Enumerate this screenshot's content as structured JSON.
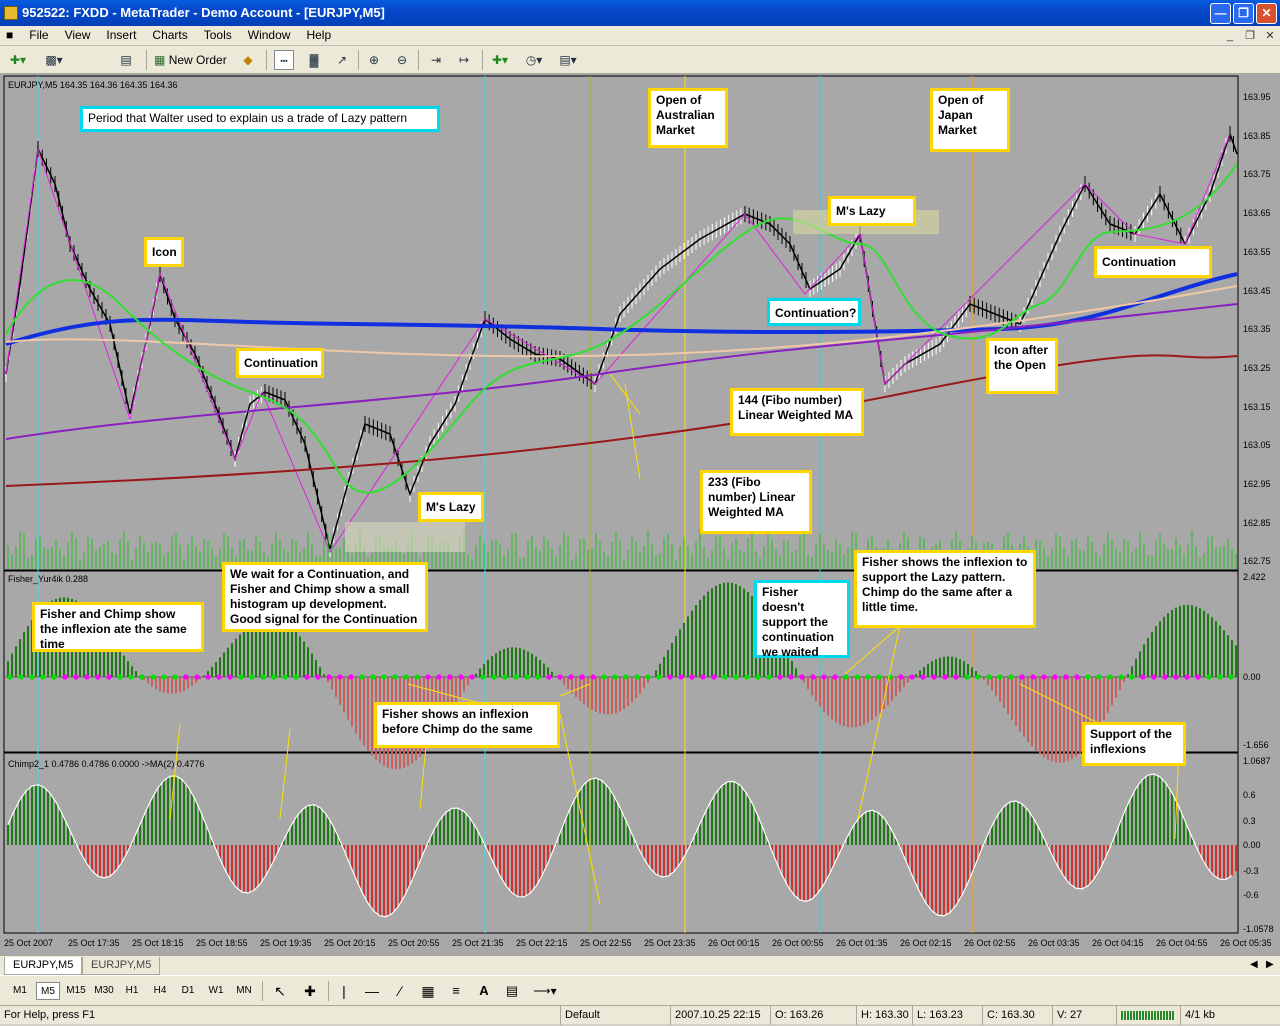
{
  "window": {
    "title": "952522: FXDD - MetaTrader - Demo Account - [EURJPY,M5]"
  },
  "menu": {
    "items": [
      "File",
      "View",
      "Insert",
      "Charts",
      "Tools",
      "Window",
      "Help"
    ]
  },
  "toolbar": {
    "new_order_label": "New Order"
  },
  "chart": {
    "symbol_header": "EURJPY,M5  164.35 164.36 164.35 164.36",
    "fisher_header": "Fisher_Yur4ik 0.288",
    "chimp_header": "Chimp2_1 0.4786 0.4786 0.0000  ->MA(2) 0.4776",
    "price_labels": [
      "163.95",
      "163.85",
      "163.75",
      "163.65",
      "163.55",
      "163.45",
      "163.35",
      "163.25",
      "163.15",
      "163.05",
      "162.95",
      "162.85",
      "162.75"
    ],
    "fisher_labels": [
      "2.422",
      "0.00",
      "-1.656"
    ],
    "chimp_labels": [
      "1.0687",
      "0.6",
      "0.3",
      "0.00",
      "-0.3",
      "-0.6",
      "-1.0578"
    ],
    "time_labels": [
      "25 Oct 2007",
      "25 Oct 17:35",
      "25 Oct 18:15",
      "25 Oct 18:55",
      "25 Oct 19:35",
      "25 Oct 20:15",
      "25 Oct 20:55",
      "25 Oct 21:35",
      "25 Oct 22:15",
      "25 Oct 22:55",
      "25 Oct 23:35",
      "26 Oct 00:15",
      "26 Oct 00:55",
      "26 Oct 01:35",
      "26 Oct 02:15",
      "26 Oct 02:55",
      "26 Oct 03:35",
      "26 Oct 04:15",
      "26 Oct 04:55",
      "26 Oct 05:35"
    ]
  },
  "annotations": {
    "period": "Period that Walter used to explain us a trade of Lazy pattern",
    "icon": "Icon",
    "continuation1": "Continuation",
    "ms_lazy1": "M's Lazy",
    "open_australia": "Open of Australian Market",
    "open_japan": "Open of Japan Market",
    "ms_lazy2": "M's Lazy",
    "continuation_q": "Continuation?",
    "ma144": "144 (Fibo number) Linear Weighted MA",
    "ma233": "233 (Fibo number) Linear Weighted MA",
    "icon_after_open": "Icon after the Open",
    "continuation2": "Continuation",
    "fisher_chimp_same": "Fisher and Chimp show the inflexion ate the same time",
    "wait_continuation": "We wait for a Continuation, and Fisher and Chimp show a small histogram up development. Good signal for the Continuation",
    "fisher_before": "Fisher shows an inflexion before Chimp do the same",
    "fisher_doesnt": "Fisher doesn't support the continuation we waited",
    "fisher_lazy": "Fisher shows the inflexion to support the Lazy pattern. Chimp do the same after a little time.",
    "support_inflexions": "Support of the inflexions"
  },
  "tabs": [
    "EURJPY,M5",
    "EURJPY,M5"
  ],
  "timeframes": [
    "M1",
    "M5",
    "M15",
    "M30",
    "H1",
    "H4",
    "D1",
    "W1",
    "MN"
  ],
  "active_timeframe": "M5",
  "status": {
    "help": "For Help, press F1",
    "profile": "Default",
    "datetime": "2007.10.25 22:15",
    "open": "O: 163.26",
    "high": "H: 163.30",
    "low": "L: 163.23",
    "close": "C: 163.30",
    "volume": "V: 27",
    "traffic": "4/1 kb"
  },
  "colors": {
    "chart_bg": "#a8a8a8",
    "bull_hist": "#1e7a14",
    "bear_hist": "#d03030",
    "fast_ma": "#30e030",
    "slow_ma": "#1030e0",
    "ma144": "#8a20c0",
    "ma233": "#9a1818",
    "note_border": "#ffd700",
    "note_border_cyan": "#00d8f0"
  }
}
